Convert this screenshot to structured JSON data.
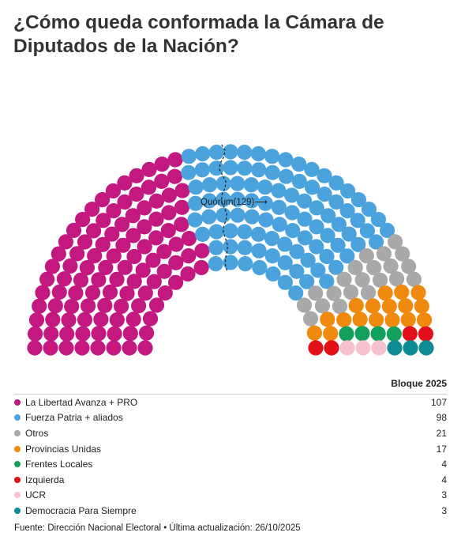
{
  "title": "¿Cómo queda conformada la Cámara de Diputados de la Nación?",
  "quorum_label": "Quórum(129)⟶",
  "legend_header": "Bloque 2025",
  "source": "Fuente: Dirección Nacional Electoral • Última actualización: 26/10/2025",
  "chart_data": {
    "type": "parliament",
    "total_seats": 257,
    "quorum": 129,
    "series": [
      {
        "name": "La Libertad Avanza + PRO",
        "value": 107,
        "color": "#c2187f"
      },
      {
        "name": "Fuerza Patria + aliados",
        "value": 98,
        "color": "#4ba3dd"
      },
      {
        "name": "Otros",
        "value": 21,
        "color": "#a9a9a9"
      },
      {
        "name": "Provincias Unidas",
        "value": 17,
        "color": "#f08a0e"
      },
      {
        "name": "Frentes Locales",
        "value": 4,
        "color": "#13a05a"
      },
      {
        "name": "Izquierda",
        "value": 4,
        "color": "#e3101a"
      },
      {
        "name": "UCR",
        "value": 3,
        "color": "#f7c1cf"
      },
      {
        "name": "Democracia Para Siempre",
        "value": 3,
        "color": "#0e8a94"
      }
    ]
  }
}
